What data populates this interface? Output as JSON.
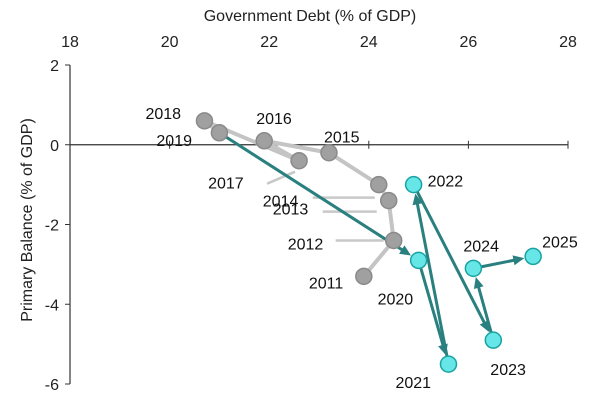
{
  "chart_data": {
    "type": "scatter",
    "title": "",
    "xlabel": "Government Debt (% of GDP)",
    "ylabel": "Primary Balance (% of GDP)",
    "xlim": [
      18,
      28
    ],
    "ylim": [
      -6,
      2
    ],
    "x_ticks": [
      "18",
      "20",
      "22",
      "24",
      "26",
      "28"
    ],
    "y_ticks": [
      "2",
      "0",
      "-2",
      "-4",
      "-6"
    ],
    "x_axis_position": "top",
    "grid": false,
    "legend": "none",
    "colors": {
      "historical_marker": "#a0a0a0",
      "historical_line": "#c4c4c4",
      "recent_marker": "#66e6e6",
      "recent_marker_edge": "#1aa3a3",
      "recent_line": "#2a7f7f",
      "leader_line": "#c8c8c8"
    },
    "series": [
      {
        "style": "historical",
        "points": [
          {
            "label": "2011",
            "x": 23.9,
            "y": -3.3
          },
          {
            "label": "2012",
            "x": 24.5,
            "y": -2.4
          },
          {
            "label": "2013",
            "x": 24.4,
            "y": -1.4
          },
          {
            "label": "2014",
            "x": 24.2,
            "y": -1.0
          },
          {
            "label": "2015",
            "x": 23.2,
            "y": -0.2
          },
          {
            "label": "2016",
            "x": 21.9,
            "y": 0.1
          },
          {
            "label": "2017",
            "x": 22.6,
            "y": -0.4
          },
          {
            "label": "2018",
            "x": 20.7,
            "y": 0.6
          },
          {
            "label": "2019",
            "x": 21.0,
            "y": 0.3
          }
        ]
      },
      {
        "style": "recent",
        "points": [
          {
            "label": "2019",
            "x": 21.0,
            "y": 0.3
          },
          {
            "label": "2020",
            "x": 25.0,
            "y": -2.9
          },
          {
            "label": "2021",
            "x": 25.6,
            "y": -5.5
          },
          {
            "label": "2022",
            "x": 24.9,
            "y": -1.0
          },
          {
            "label": "2023",
            "x": 26.5,
            "y": -4.9
          },
          {
            "label": "2024",
            "x": 26.1,
            "y": -3.1
          },
          {
            "label": "2025",
            "x": 27.3,
            "y": -2.8
          }
        ]
      }
    ]
  }
}
